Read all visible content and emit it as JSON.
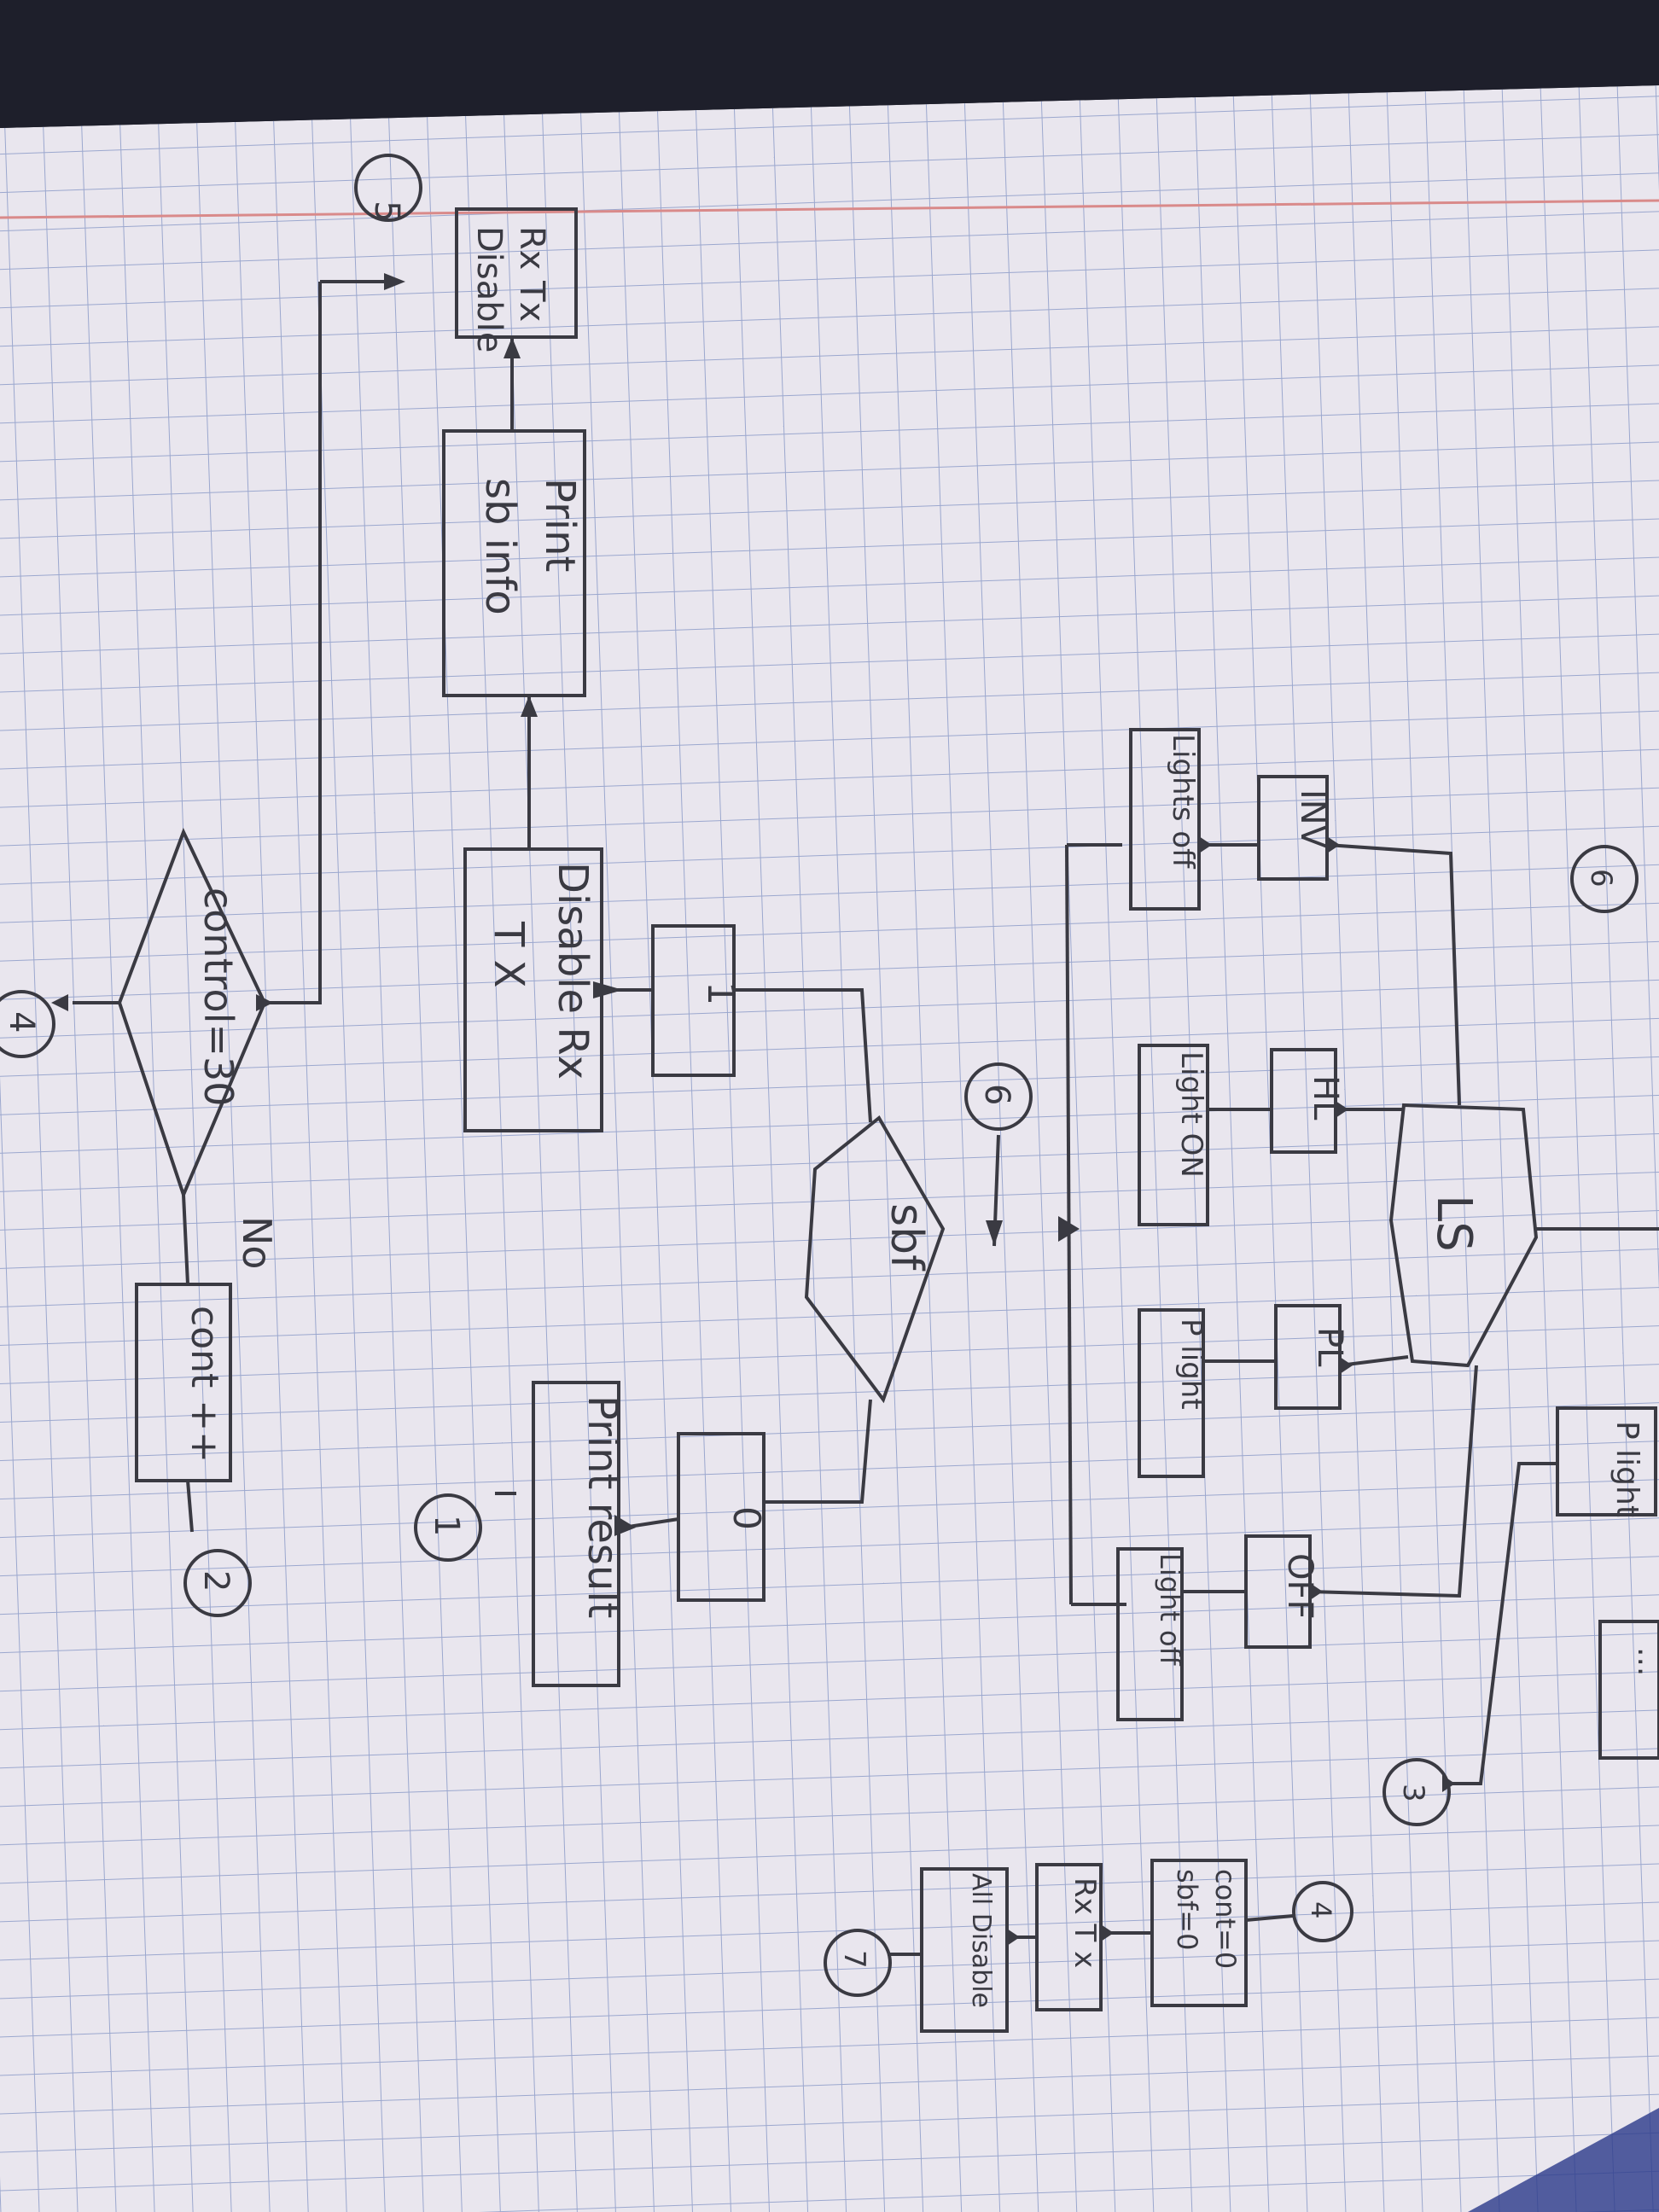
{
  "sheet": {
    "paper_color": "#e9e6ee",
    "grid_color": "#8d9cc8",
    "ink_color": "#3a3a42",
    "margin_line_color": "#d98a8a"
  },
  "flowchart": {
    "connector_5": "5",
    "block_rxtx_disable": [
      "Rx Tx",
      "Disable"
    ],
    "block_print_sbinfo": [
      "Print",
      "sb info"
    ],
    "block_disable_rx_tx": [
      "Disable Rx",
      "T X"
    ],
    "decision_control": "control=30",
    "connector_4_left": "4",
    "label_no": "No",
    "block_cont_inc": "cont ++",
    "connector_2": "2",
    "box_one": "1",
    "decision_sbf": "sbf",
    "connector_6": "6",
    "box_zero": "0",
    "block_print_result": "Print result",
    "connector_1": "1",
    "decision_ls": "LS",
    "block_inv": "INV",
    "block_lightsoff": "Lights off",
    "block_hl": "HL",
    "block_lighton": "Light ON",
    "block_pl": "PL",
    "block_plight": "P light",
    "block_off": "OFF",
    "block_lightoff": "Light off",
    "block_plight_right": "P light",
    "block_partial_right": "...",
    "connector_3": "3",
    "connector_6_top": "6",
    "connector_4": "4",
    "block_counters": [
      "cont=0",
      "sbf=0"
    ],
    "block_rxtx": "Rx T x",
    "block_all_disable": "All Disable",
    "connector_7": "7"
  }
}
